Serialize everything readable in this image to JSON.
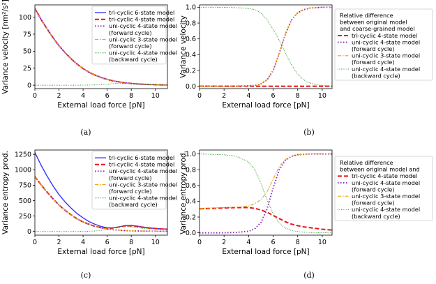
{
  "colors": {
    "tri6": "#3333ff",
    "tri4": "#e8141a",
    "uni4f": "#8b2bb6",
    "uni3": "#f0a30a",
    "uni4b": "#2f9a2f"
  },
  "captions": [
    "(a)",
    "(b)",
    "(c)",
    "(d)"
  ],
  "chart_data": [
    {
      "type": "line",
      "xlabel": "External load force [pN]",
      "ylabel": "Variance velocity [nm²/s²]",
      "xlim": [
        0,
        11
      ],
      "ylim": [
        -5,
        118
      ],
      "xticks": [
        "0",
        "2",
        "4",
        "6",
        "8",
        "10"
      ],
      "yticks": [
        "0",
        "25",
        "50",
        "75",
        "100"
      ],
      "grid": false,
      "legend_position": "top-right",
      "x": [
        0,
        0.5,
        1,
        1.5,
        2,
        2.5,
        3,
        3.5,
        4,
        4.5,
        5,
        5.5,
        6,
        6.5,
        7,
        7.5,
        8,
        8.5,
        9,
        9.5,
        10,
        10.5,
        11
      ],
      "series": [
        {
          "name": "tri-cyclic 6-state model",
          "color_key": "tri6",
          "style": "solid",
          "values": [
            113,
            97,
            83,
            70,
            58,
            48,
            39,
            31,
            24.5,
            19,
            14.8,
            11.3,
            8.5,
            6.3,
            4.8,
            3.5,
            2.6,
            1.9,
            1.4,
            1.0,
            0.7,
            0.5,
            0.35
          ]
        },
        {
          "name": "tri-cyclic 4-state model",
          "color_key": "tri4",
          "style": "dashed",
          "values": [
            113,
            97,
            83,
            70,
            58,
            48,
            39,
            31,
            24.5,
            19,
            14.8,
            11.3,
            8.5,
            6.3,
            4.8,
            3.5,
            2.6,
            1.9,
            1.4,
            1.0,
            0.7,
            0.5,
            0.35
          ]
        },
        {
          "name": "uni-cyclic 4-state model (forward cycle)",
          "color_key": "uni4f",
          "style": "dotted",
          "values": [
            113,
            97,
            83,
            70,
            58,
            48,
            39,
            31,
            24.5,
            19,
            14.8,
            11.3,
            8.5,
            6.3,
            4.8,
            3.5,
            2.6,
            1.9,
            1.4,
            1.0,
            0.7,
            0.5,
            0.35
          ]
        },
        {
          "name": "uni-cyclic 3-state model (forward cycle)",
          "color_key": "uni3",
          "style": "dashdot",
          "values": [
            113,
            97,
            83,
            70,
            58,
            48,
            39,
            31,
            24.5,
            19,
            14.8,
            11.3,
            8.5,
            6.3,
            4.8,
            3.5,
            2.6,
            1.9,
            1.4,
            1.0,
            0.7,
            0.5,
            0.35
          ]
        },
        {
          "name": "uni-cyclic 4-state model (backward cycle)",
          "color_key": "uni4b",
          "style": "densedot",
          "values": [
            0,
            0,
            0,
            0,
            0,
            0,
            0,
            0,
            0.1,
            0.2,
            0.4,
            0.8,
            1.5,
            2.3,
            2.8,
            2.7,
            2.2,
            1.6,
            1.1,
            0.7,
            0.45,
            0.3,
            0.2
          ]
        }
      ],
      "legend_labels": [
        [
          "tri-cyclic 6-state model"
        ],
        [
          "tri-cyclic 4-state model"
        ],
        [
          "uni-cyclic 4-state model",
          "(forward cycle)"
        ],
        [
          "uni-cyclic 3-state model",
          "(forward cycle)"
        ],
        [
          "uni-cyclic 4-state model",
          "(backward cycle)"
        ]
      ]
    },
    {
      "type": "line",
      "xlabel": "External load force [pN]",
      "ylabel": "Variance velocity",
      "xlim": [
        0,
        10.8
      ],
      "ylim": [
        -0.03,
        1.03
      ],
      "xticks": [
        "0",
        "2",
        "4",
        "6",
        "8",
        "10"
      ],
      "yticks": [
        "0.0",
        "0.2",
        "0.4",
        "0.6",
        "0.8",
        "1.0"
      ],
      "grid": false,
      "legend_position": "outside-right",
      "x": [
        0,
        1,
        2,
        3,
        4,
        4.5,
        5,
        5.5,
        6,
        6.5,
        7,
        7.5,
        8,
        8.5,
        9,
        9.5,
        10,
        10.8
      ],
      "series": [
        {
          "name": "tri-cyclic 4-state model",
          "color_key": "tri4",
          "style": "dashed",
          "values": [
            0,
            0,
            0,
            0,
            0,
            0,
            0,
            0,
            0,
            0,
            0,
            0,
            0,
            0,
            0,
            0,
            0,
            0
          ]
        },
        {
          "name": "uni-cyclic 4-state model (forward cycle)",
          "color_key": "uni4f",
          "style": "dotted",
          "values": [
            0,
            0,
            0,
            0,
            0.005,
            0.01,
            0.03,
            0.08,
            0.2,
            0.42,
            0.66,
            0.84,
            0.93,
            0.97,
            0.99,
            0.995,
            1.0,
            1.0
          ]
        },
        {
          "name": "uni-cyclic 3-state model (forward cycle)",
          "color_key": "uni3",
          "style": "dashdot",
          "values": [
            0,
            0,
            0,
            0,
            0.005,
            0.01,
            0.03,
            0.08,
            0.2,
            0.42,
            0.66,
            0.84,
            0.93,
            0.97,
            0.99,
            0.995,
            1.0,
            1.0
          ]
        },
        {
          "name": "uni-cyclic 4-state model (backward cycle)",
          "color_key": "uni4b",
          "style": "densedot",
          "values": [
            1.0,
            1.0,
            0.999,
            0.995,
            0.985,
            0.97,
            0.93,
            0.84,
            0.72,
            0.58,
            0.42,
            0.27,
            0.15,
            0.08,
            0.04,
            0.02,
            0.01,
            0.0
          ]
        }
      ],
      "legend_labels": [
        [
          "Relative difference",
          "between original model",
          "and coarse-grained model"
        ],
        [
          "tri-cyclic 4-state model"
        ],
        [
          "uni-cyclic 4-state model",
          "(forward cycle)"
        ],
        [
          "uni-cyclic 3-state model",
          "(forward cycle)"
        ],
        [
          "uni-cyclic 4-state model",
          "(backward cycle)"
        ]
      ]
    },
    {
      "type": "line",
      "xlabel": "External load force [pN]",
      "ylabel": "Variance entropy prod.",
      "xlim": [
        0,
        11
      ],
      "ylim": [
        -60,
        1320
      ],
      "xticks": [
        "0",
        "2",
        "4",
        "6",
        "8",
        "10"
      ],
      "yticks": [
        "0",
        "250",
        "500",
        "750",
        "1000",
        "1250"
      ],
      "grid": false,
      "legend_position": "top-right",
      "x": [
        0,
        0.5,
        1,
        1.5,
        2,
        2.5,
        3,
        3.5,
        4,
        4.5,
        5,
        5.5,
        6,
        6.5,
        7,
        7.5,
        8,
        8.5,
        9,
        9.5,
        10,
        10.5,
        11
      ],
      "series": [
        {
          "name": "tri-cyclic 6-state model",
          "color_key": "tri6",
          "style": "solid",
          "values": [
            1280,
            1080,
            900,
            740,
            600,
            480,
            380,
            290,
            220,
            160,
            115,
            80,
            60,
            58,
            75,
            95,
            97,
            85,
            70,
            58,
            48,
            42,
            38
          ]
        },
        {
          "name": "tri-cyclic 4-state model",
          "color_key": "tri4",
          "style": "dashed",
          "values": [
            890,
            760,
            640,
            530,
            430,
            345,
            270,
            205,
            155,
            115,
            82,
            60,
            50,
            55,
            72,
            90,
            93,
            83,
            68,
            56,
            47,
            41,
            36
          ]
        },
        {
          "name": "uni-cyclic 4-state model (forward cycle)",
          "color_key": "uni4f",
          "style": "dotted",
          "values": [
            890,
            760,
            640,
            530,
            430,
            345,
            270,
            205,
            155,
            115,
            82,
            58,
            40,
            28,
            20,
            14,
            10,
            8,
            6,
            5,
            4,
            3,
            3
          ]
        },
        {
          "name": "uni-cyclic 3-state model (forward cycle)",
          "color_key": "uni3",
          "style": "dashdot",
          "values": [
            890,
            760,
            640,
            530,
            430,
            345,
            270,
            205,
            155,
            115,
            82,
            58,
            40,
            28,
            20,
            14,
            10,
            8,
            6,
            5,
            4,
            3,
            3
          ]
        },
        {
          "name": "uni-cyclic 4-state model (backward cycle)",
          "color_key": "uni4b",
          "style": "densedot",
          "values": [
            0,
            0,
            0,
            0,
            0,
            0,
            0,
            0,
            1,
            3,
            8,
            18,
            34,
            55,
            75,
            82,
            75,
            62,
            50,
            42,
            38,
            35,
            34
          ]
        }
      ],
      "legend_labels": [
        [
          "tri-cyclic 6-state model"
        ],
        [
          "tri-cyclic 4-state model"
        ],
        [
          "uni-cyclic 4-state model",
          "(forward cycle)"
        ],
        [
          "uni-cyclic 3-state model",
          "(forward cycle)"
        ],
        [
          "uni-cyclic 4-state model",
          "(backward cycle)"
        ]
      ]
    },
    {
      "type": "line",
      "xlabel": "External load force [pN]",
      "ylabel": "Variance entropy prod.",
      "xlim": [
        0,
        10.8
      ],
      "ylim": [
        -0.03,
        1.05
      ],
      "xticks": [
        "0",
        "2",
        "4",
        "6",
        "8",
        "10"
      ],
      "yticks": [
        "0.0",
        "0.2",
        "0.4",
        "0.6",
        "0.8",
        "1.0"
      ],
      "grid": false,
      "legend_position": "outside-right",
      "x": [
        0,
        1,
        2,
        3,
        4,
        4.5,
        5,
        5.5,
        6,
        6.5,
        7,
        7.5,
        8,
        8.5,
        9,
        9.5,
        10,
        10.8
      ],
      "series": [
        {
          "name": "tri-cyclic 4-state model",
          "color_key": "tri4",
          "style": "dashed",
          "values": [
            0.305,
            0.31,
            0.315,
            0.32,
            0.32,
            0.31,
            0.29,
            0.26,
            0.22,
            0.18,
            0.14,
            0.11,
            0.09,
            0.075,
            0.065,
            0.055,
            0.045,
            0.035
          ]
        },
        {
          "name": "uni-cyclic 4-state model (forward cycle)",
          "color_key": "uni4f",
          "style": "dotted",
          "values": [
            0,
            0,
            0,
            0.005,
            0.02,
            0.05,
            0.13,
            0.3,
            0.57,
            0.8,
            0.92,
            0.97,
            0.99,
            0.995,
            1.0,
            1.0,
            1.0,
            1.0
          ]
        },
        {
          "name": "uni-cyclic 3-state model (forward cycle)",
          "color_key": "uni3",
          "style": "dashdot",
          "values": [
            0.31,
            0.315,
            0.32,
            0.325,
            0.34,
            0.37,
            0.42,
            0.52,
            0.68,
            0.84,
            0.93,
            0.97,
            0.99,
            0.995,
            1.0,
            1.0,
            1.0,
            1.0
          ]
        },
        {
          "name": "uni-cyclic 4-state model (backward cycle)",
          "color_key": "uni4b",
          "style": "densedot",
          "values": [
            1.0,
            0.995,
            0.99,
            0.97,
            0.9,
            0.8,
            0.63,
            0.42,
            0.24,
            0.12,
            0.06,
            0.03,
            0.015,
            0.008,
            0.004,
            0.002,
            0.001,
            0.0
          ]
        }
      ],
      "legend_labels": [
        [
          "Relative difference",
          "between original model and"
        ],
        [
          "tri-cyclic 4-state model"
        ],
        [
          "uni-cyclic 4-state model",
          "(forward cycle)"
        ],
        [
          "uni-cyclic 3-state model",
          "(forward cycle)"
        ],
        [
          "uni-cyclic 4-state model",
          "(backward cycle)"
        ]
      ]
    }
  ]
}
